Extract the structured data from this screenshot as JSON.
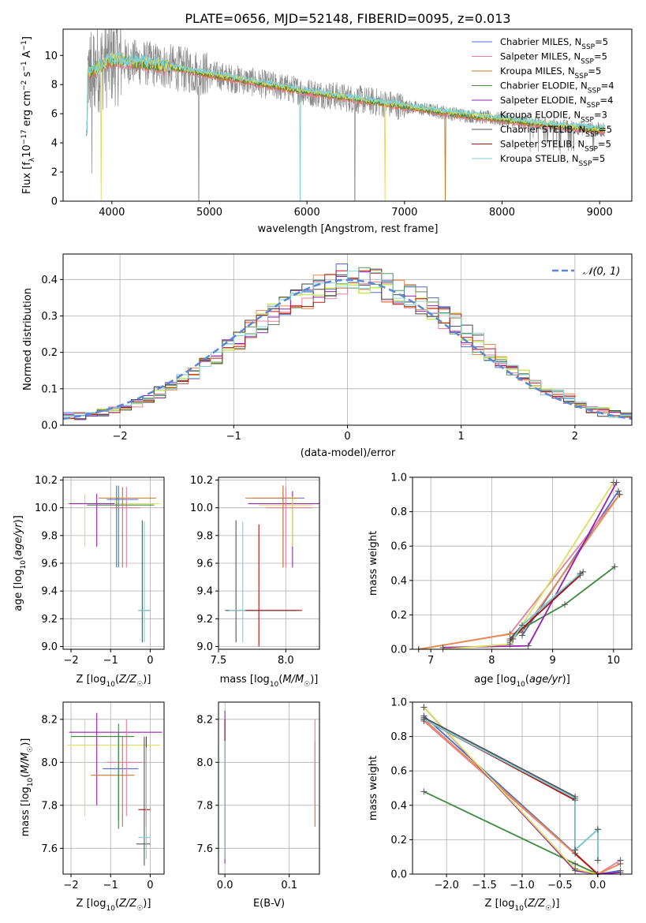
{
  "title": "PLATE=0656, MJD=52148, FIBERID=0095, z=0.013",
  "colors": {
    "c1": "#4f6fd0",
    "c2": "#e57f9b",
    "c3": "#c07a2a",
    "c4": "#3f8a3f",
    "c5": "#9b1fb0",
    "c6": "#d9e05a",
    "c7": "#555555",
    "c8": "#b01010",
    "c9": "#78d0d8",
    "hist": [
      "#4f6fd0",
      "#e8809a",
      "#e98a4a",
      "#5f8f5f",
      "#8a22b0",
      "#c8e864",
      "#444444",
      "#b51b1b",
      "#7fd3d8"
    ],
    "gauss": "#5b87d6"
  },
  "chart_data": [
    {
      "type": "line",
      "panel": "spectrum",
      "xlabel": "wavelength [Angstrom, rest frame]",
      "ylabel_main": "Flux [f",
      "ylabel_sub": "λ",
      "ylabel_rest": "10",
      "ylabel_exp": "−17",
      "ylabel_tail": " erg cm",
      "ylabel_exp2": "−2",
      "ylabel_s": " s",
      "ylabel_exp3": "−1",
      "ylabel_A": " A",
      "ylabel_exp4": "−1",
      "ylabel_end": "]",
      "xlim": [
        3500,
        9330
      ],
      "ylim": [
        0,
        11.8
      ],
      "xticks": [
        4000,
        5000,
        6000,
        7000,
        8000,
        9000
      ],
      "yticks": [
        0,
        2,
        4,
        6,
        8,
        10
      ],
      "legend_position": "upper-right",
      "legend": [
        {
          "base": "Chabrier MILES, N",
          "sub": "SSP",
          "tail": "=5",
          "color": "#4f6fd0"
        },
        {
          "base": "Salpeter MILES, N",
          "sub": "SSP",
          "tail": "=5",
          "color": "#e57f9b"
        },
        {
          "base": "Kroupa MILES, N",
          "sub": "SSP",
          "tail": "=5",
          "color": "#c07a2a"
        },
        {
          "base": "Chabrier ELODIE, N",
          "sub": "SSP",
          "tail": "=4",
          "color": "#3f8a3f"
        },
        {
          "base": "Salpeter ELODIE, N",
          "sub": "SSP",
          "tail": "=4",
          "color": "#9b1fb0"
        },
        {
          "base": "Kroupa ELODIE, N",
          "sub": "SSP",
          "tail": "=3",
          "color": "#d9e05a"
        },
        {
          "base": "Chabrier STELIB, N",
          "sub": "SSP",
          "tail": "=5",
          "color": "#555555"
        },
        {
          "base": "Salpeter STELIB, N",
          "sub": "SSP",
          "tail": "=5",
          "color": "#b01010"
        },
        {
          "base": "Kroupa STELIB, N",
          "sub": "SSP",
          "tail": "=5",
          "color": "#78d0d8"
        }
      ],
      "data_trend": {
        "x": [
          3750,
          4000,
          4300,
          4600,
          5000,
          5500,
          6000,
          6500,
          7000,
          7500,
          8000,
          8500,
          9000
        ],
        "y": [
          8.8,
          9.7,
          9.5,
          9.2,
          8.7,
          8.1,
          7.5,
          7.0,
          6.5,
          6.0,
          5.6,
          5.2,
          4.9
        ]
      }
    },
    {
      "type": "line",
      "panel": "residual_histogram",
      "xlabel": "(data-model)/error",
      "ylabel": "Normed distribution",
      "xlim": [
        -2.5,
        2.5
      ],
      "ylim": [
        0,
        0.47
      ],
      "xticks": [
        -2,
        -1,
        0,
        1,
        2
      ],
      "yticks": [
        0.0,
        0.1,
        0.2,
        0.3,
        0.4
      ],
      "legend": "𝒩(0, 1)",
      "legend_position": "upper-right",
      "bin_width": 0.1,
      "grid": true
    },
    {
      "type": "scatter",
      "panel": "age_vs_Z",
      "xlabel": "Z [log",
      "xlabel_sub": "10",
      "xlabel_rest": "(Z/Z",
      "xlabel_sun": "☉",
      "xlabel_end": ")]",
      "ylabel": "age  [log10(age/yr)]",
      "xlim": [
        -2.2,
        0.35
      ],
      "ylim": [
        8.98,
        10.22
      ],
      "xticks": [
        -2,
        -1,
        0
      ],
      "yticks": [
        9.0,
        9.2,
        9.4,
        9.6,
        9.8,
        10.0,
        10.2
      ],
      "grid": true
    },
    {
      "type": "scatter",
      "panel": "age_vs_mass",
      "xlabel": "mass [log10(M/M☉)]",
      "xlim": [
        7.5,
        8.25
      ],
      "ylim": [
        8.98,
        10.22
      ],
      "xticks": [
        7.5,
        8.0
      ],
      "yticks": [
        9.0,
        9.2,
        9.4,
        9.6,
        9.8,
        10.0,
        10.2
      ],
      "grid": true
    },
    {
      "type": "line",
      "panel": "massweight_vs_age",
      "xlabel": "age  [log10(age/yr)]",
      "ylabel": "mass weight",
      "xlim": [
        6.7,
        10.3
      ],
      "ylim": [
        0,
        1.0
      ],
      "xticks": [
        7,
        8,
        9,
        10
      ],
      "yticks": [
        0.0,
        0.2,
        0.4,
        0.6,
        0.8,
        1.0
      ],
      "grid": true,
      "series": [
        {
          "color": "#4f6fd0",
          "x": [
            8.5,
            10.08
          ],
          "y": [
            0.08,
            0.92
          ]
        },
        {
          "color": "#e57f9b",
          "x": [
            6.8,
            8.3,
            10.1
          ],
          "y": [
            0.0,
            0.09,
            0.9
          ]
        },
        {
          "color": "#e98a4a",
          "x": [
            6.8,
            8.5,
            10.1
          ],
          "y": [
            0.0,
            0.1,
            0.9
          ]
        },
        {
          "color": "#3f8a3f",
          "x": [
            8.3,
            8.5,
            9.2,
            10.02
          ],
          "y": [
            0.04,
            0.12,
            0.26,
            0.48
          ]
        },
        {
          "color": "#9b1fb0",
          "x": [
            7.2,
            8.6,
            10.05
          ],
          "y": [
            0.01,
            0.02,
            0.97
          ]
        },
        {
          "color": "#d9e05a",
          "x": [
            7.2,
            8.3,
            10.0
          ],
          "y": [
            0.0,
            0.03,
            0.97
          ]
        },
        {
          "color": "#555555",
          "x": [
            8.3,
            8.5,
            9.5
          ],
          "y": [
            0.06,
            0.14,
            0.45
          ]
        },
        {
          "color": "#b01010",
          "x": [
            8.3,
            8.5,
            9.45
          ],
          "y": [
            0.05,
            0.12,
            0.43
          ]
        },
        {
          "color": "#78d0d8",
          "x": [
            8.35,
            8.5,
            9.45
          ],
          "y": [
            0.06,
            0.14,
            0.44
          ]
        }
      ]
    },
    {
      "type": "scatter",
      "panel": "mass_vs_Z",
      "xlabel": "Z [log10(Z/Z☉)]",
      "ylabel": "mass [log10(M/M☉)]",
      "xlim": [
        -2.2,
        0.35
      ],
      "ylim": [
        7.48,
        8.28
      ],
      "xticks": [
        -2,
        -1,
        0
      ],
      "yticks": [
        7.6,
        7.8,
        8.0,
        8.2
      ],
      "grid": true
    },
    {
      "type": "scatter",
      "panel": "mass_vs_EBV",
      "xlabel": "E(B-V)",
      "xlim": [
        -0.01,
        0.147
      ],
      "ylim": [
        7.48,
        8.28
      ],
      "xticks": [
        0.0,
        0.1
      ],
      "yticks": [
        7.6,
        7.8,
        8.0,
        8.2
      ],
      "grid": true
    },
    {
      "type": "line",
      "panel": "massweight_vs_Z",
      "xlabel": "Z [log10(Z/Z☉)]",
      "ylabel": "mass weight",
      "xlim": [
        -2.45,
        0.45
      ],
      "ylim": [
        0,
        1.0
      ],
      "xticks": [
        -2.0,
        -1.5,
        -1.0,
        -0.5,
        0.0
      ],
      "yticks": [
        0.0,
        0.2,
        0.4,
        0.6,
        0.8,
        1.0
      ],
      "grid": true,
      "series": [
        {
          "color": "#4f6fd0",
          "x": [
            -2.3,
            0.0,
            0.3
          ],
          "y": [
            0.92,
            0.0,
            0.02
          ]
        },
        {
          "color": "#e57f9b",
          "x": [
            -2.3,
            0.0,
            0.3
          ],
          "y": [
            0.89,
            0.0,
            0.08
          ]
        },
        {
          "color": "#e98a4a",
          "x": [
            -2.3,
            0.0,
            0.3
          ],
          "y": [
            0.9,
            0.0,
            0.06
          ]
        },
        {
          "color": "#3f8a3f",
          "x": [
            -2.3,
            -0.3,
            0.0,
            0.0
          ],
          "y": [
            0.48,
            0.06,
            0.0,
            0.0
          ]
        },
        {
          "color": "#9b1fb0",
          "x": [
            -2.3,
            -0.3,
            0.0,
            0.3
          ],
          "y": [
            0.97,
            0.02,
            0.0,
            0.01
          ]
        },
        {
          "color": "#d9e05a",
          "x": [
            -2.3,
            -0.3,
            0.0
          ],
          "y": [
            0.97,
            0.03,
            0.0
          ]
        },
        {
          "color": "#555555",
          "x": [
            -2.3,
            -0.3,
            -0.3,
            0.0,
            0.0
          ],
          "y": [
            0.91,
            0.45,
            0.14,
            0.26,
            0.08
          ]
        },
        {
          "color": "#b01010",
          "x": [
            -2.3,
            -0.3,
            -0.3,
            0.0
          ],
          "y": [
            0.9,
            0.43,
            0.12,
            0.0
          ]
        },
        {
          "color": "#78d0d8",
          "x": [
            -2.3,
            -0.3,
            -0.3,
            0.0,
            0.0
          ],
          "y": [
            0.9,
            0.44,
            0.14,
            0.26,
            0.08
          ]
        }
      ]
    }
  ]
}
